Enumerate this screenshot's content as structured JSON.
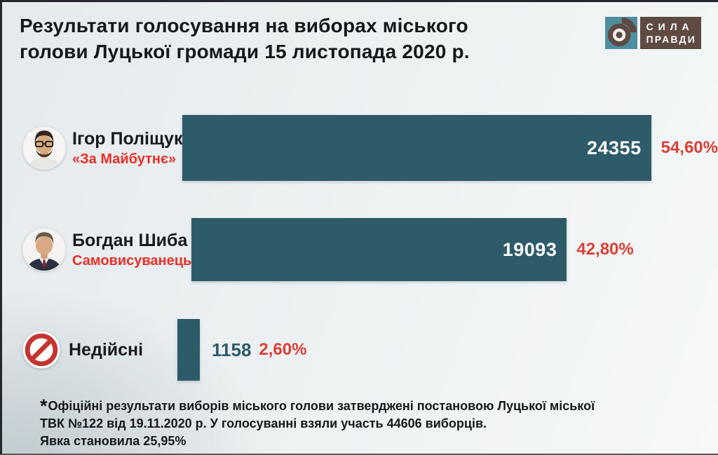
{
  "header": {
    "title_line1": "Результати голосування на виборах міського",
    "title_line2": "голови Луцької громади 15 листопада 2020 р.",
    "logo": {
      "line1": "СИЛА",
      "line2": "ПРАВДИ"
    }
  },
  "chart_data": {
    "type": "bar",
    "orientation": "horizontal",
    "title": "Результати голосування на виборах міського голови Луцької громади 15 листопада 2020 р.",
    "categories": [
      "Ігор Поліщук («За Майбутнє»)",
      "Богдан Шиба (Самовисуванець)",
      "Недійсні"
    ],
    "values": [
      24355,
      19093,
      1158
    ],
    "percents": [
      54.6,
      42.8,
      2.6
    ],
    "value_labels": [
      "24355",
      "19093",
      "1158"
    ],
    "percent_labels": [
      "54,60%",
      "42,80%",
      "2,60%"
    ],
    "max_value": 24355,
    "colors": {
      "bar": "#2e5b69",
      "value_in_bar": "#ffffff",
      "value_outside": "#2d5a68",
      "percent_red": "#dc3f35",
      "party_red": "#ea2f27",
      "logo_brown": "#5e4a41",
      "logo_teal": "#4f8ea1"
    }
  },
  "rows": [
    {
      "name": "Ігор Поліщук",
      "party": "«За Майбутнє»",
      "votes": "24355",
      "percent": "54,60%"
    },
    {
      "name": "Богдан Шиба",
      "party": "Самовисуванець",
      "votes": "19093",
      "percent": "42,80%"
    },
    {
      "name": "Недійсні",
      "party": "",
      "votes": "1158",
      "percent": "2,60%"
    }
  ],
  "footnote": {
    "asterisk": "*",
    "line1": "Офіційні результати виборів міського голови затверджені постановою Луцької міської",
    "line2": "ТВК №122 від 19.11.2020 р. У голосуванні взяли участь 44606 виборців.",
    "line3": "Явка становила 25,95%"
  }
}
